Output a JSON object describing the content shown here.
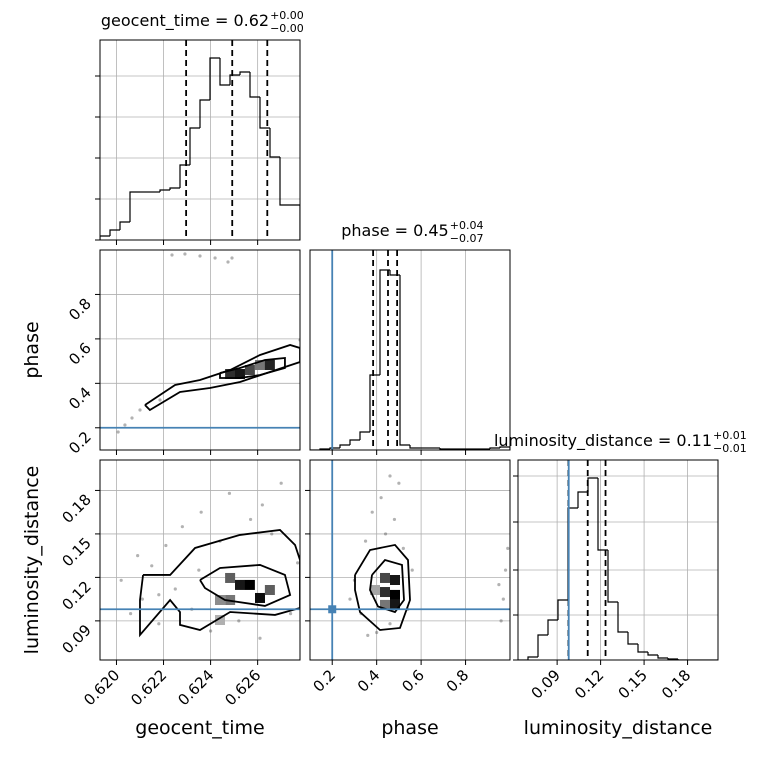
{
  "chart_data": [
    {
      "type": "histogram",
      "title": "geocent_time = 0.62",
      "title_upper": "+0.00",
      "title_lower": "−0.00",
      "bins": [
        0.6193,
        0.619725,
        0.62015,
        0.620575,
        0.621,
        0.621425,
        0.62185,
        0.622275,
        0.6227,
        0.623125,
        0.62355,
        0.623975,
        0.6244,
        0.624825,
        0.62525,
        0.625675,
        0.6261,
        0.626525,
        0.62695,
        0.627375,
        0.6278
      ],
      "counts": [
        4,
        10,
        18,
        48,
        48,
        48,
        50,
        52,
        75,
        112,
        140,
        182,
        155,
        165,
        168,
        143,
        112,
        83,
        35,
        35
      ],
      "quantiles": [
        0.62296,
        0.62492,
        0.62641
      ],
      "color": "#000000",
      "xlim": [
        0.6193,
        0.6278
      ],
      "ylim": [
        0,
        200
      ],
      "xticks": [
        0.62,
        0.622,
        0.624,
        0.626
      ],
      "yticks": [
        0,
        41,
        82,
        123,
        164
      ],
      "grid": true
    },
    {
      "type": "corner2d",
      "ylabel": "phase",
      "xlim": [
        0.6193,
        0.6278
      ],
      "ylim": [
        0.1,
        1.0
      ],
      "xticks": [
        0.62,
        0.622,
        0.624,
        0.626
      ],
      "yticks": [
        0.2,
        0.4,
        0.6,
        0.8
      ],
      "grid": true,
      "points": {
        "x": [
          0.62007,
          0.62036,
          0.62066,
          0.621,
          0.62236,
          0.62291,
          0.62355,
          0.62419,
          0.62474,
          0.62491,
          0.6278,
          0.62185
        ],
        "y": [
          0.181,
          0.2125,
          0.244,
          0.28,
          0.9775,
          0.982,
          0.973,
          0.964,
          0.946,
          0.964,
          0.595,
          0.325
        ]
      },
      "contours": [
        {
          "x": [
            0.62121,
            0.62249,
            0.62355,
            0.62483,
            0.6261,
            0.62738,
            0.6278,
            0.6278,
            0.62652,
            0.62525,
            0.62397,
            0.6227,
            0.62142,
            0.62121
          ],
          "y": [
            0.3025,
            0.3925,
            0.415,
            0.46,
            0.5275,
            0.5725,
            0.559,
            0.496,
            0.451,
            0.406,
            0.379,
            0.361,
            0.28,
            0.3025
          ]
        },
        {
          "x": [
            0.6244,
            0.62525,
            0.62631,
            0.62716,
            0.62716,
            0.6261,
            0.62525,
            0.6244,
            0.6244
          ],
          "y": [
            0.4465,
            0.469,
            0.505,
            0.514,
            0.469,
            0.4375,
            0.424,
            0.424,
            0.4465
          ]
        }
      ],
      "cells": {
        "x": [
          0.62483,
          0.62525,
          0.62567,
          0.6261,
          0.62652
        ],
        "y": [
          0.442,
          0.442,
          0.46,
          0.4825,
          0.4825
        ],
        "values": [
          0.8,
          0.9,
          0.7,
          0.5,
          0.85
        ]
      },
      "truth_y": 0.2,
      "truth_color": "#4682b4"
    },
    {
      "type": "histogram",
      "title": "phase = 0.45",
      "title_upper": "+0.04",
      "title_lower": "−0.07",
      "bins": [
        0.1,
        0.145,
        0.19,
        0.235,
        0.28,
        0.325,
        0.37,
        0.415,
        0.46,
        0.505,
        0.55,
        0.595,
        0.64,
        0.685,
        0.73,
        0.775,
        0.82,
        0.865,
        0.91,
        0.955,
        1.0
      ],
      "counts": [
        0,
        1,
        2,
        5,
        10,
        18,
        75,
        180,
        175,
        5,
        2,
        2,
        2,
        1,
        1,
        1,
        1,
        1,
        2,
        3
      ],
      "quantiles": [
        0.384,
        0.451,
        0.492
      ],
      "truth": 0.2,
      "truth_color": "#4682b4",
      "color": "#000000",
      "xlim": [
        0.1,
        1.0
      ],
      "ylim": [
        0,
        200
      ],
      "xticks": [
        0.2,
        0.4,
        0.6,
        0.8
      ],
      "grid": true
    },
    {
      "type": "corner2d",
      "xlabel": "geocent_time",
      "ylabel": "luminosity_distance",
      "xlim": [
        0.6193,
        0.6278
      ],
      "ylim": [
        0.063,
        0.201
      ],
      "xticks": [
        {
          "value": 0.62,
          "label": "0.620"
        },
        0.622,
        0.624,
        0.626
      ],
      "yticks": [
        0.09,
        0.12,
        0.15,
        0.18
      ],
      "grid": true,
      "points": {
        "x": [
          0.6202,
          0.6206,
          0.6209,
          0.6211,
          0.6215,
          0.6218,
          0.6221,
          0.6225,
          0.6228,
          0.6232,
          0.6236,
          0.624,
          0.6244,
          0.6248,
          0.6252,
          0.6257,
          0.6261,
          0.6266,
          0.627,
          0.6274,
          0.6277,
          0.6235,
          0.6218,
          0.6262
        ],
        "y": [
          0.118,
          0.095,
          0.135,
          0.105,
          0.128,
          0.088,
          0.142,
          0.112,
          0.155,
          0.098,
          0.165,
          0.083,
          0.145,
          0.178,
          0.09,
          0.16,
          0.078,
          0.15,
          0.185,
          0.095,
          0.13,
          0.125,
          0.108,
          0.17
        ]
      },
      "contours": [
        {
          "x": [
            0.62113,
            0.62228,
            0.62334,
            0.62525,
            0.62695,
            0.62759,
            0.6278,
            0.6278,
            0.62674,
            0.62483,
            0.62355,
            0.6227,
            0.6227,
            0.62228,
            0.621,
            0.621,
            0.62113
          ],
          "y": [
            0.1217,
            0.1217,
            0.1403,
            0.1493,
            0.1527,
            0.1424,
            0.132,
            0.0989,
            0.0941,
            0.0961,
            0.0837,
            0.0872,
            0.0961,
            0.1044,
            0.0803,
            0.1044,
            0.1217
          ]
        },
        {
          "x": [
            0.62355,
            0.6244,
            0.6261,
            0.62716,
            0.62738,
            0.62631,
            0.62461,
            0.62376,
            0.62355
          ],
          "y": [
            0.1182,
            0.1265,
            0.1286,
            0.1217,
            0.1079,
            0.1003,
            0.1044,
            0.1127,
            0.1182
          ]
        }
      ],
      "cells": {
        "x": [
          0.62483,
          0.62525,
          0.62567,
          0.6261,
          0.62652,
          0.6244,
          0.62483,
          0.6244
        ],
        "y": [
          0.1196,
          0.1148,
          0.1148,
          0.1058,
          0.1113,
          0.1044,
          0.1044,
          0.0906
        ],
        "values": [
          0.6,
          0.9,
          1.0,
          0.95,
          0.6,
          0.4,
          0.5,
          0.25
        ]
      },
      "truth_y": 0.098,
      "truth_color": "#4682b4"
    },
    {
      "type": "corner2d",
      "xlabel": "phase",
      "xlim": [
        0.1,
        1.0
      ],
      "ylim": [
        0.063,
        0.201
      ],
      "xticks": [
        0.2,
        0.4,
        0.6,
        0.8
      ],
      "yticks": [
        0.09,
        0.12,
        0.15,
        0.18
      ],
      "grid": true,
      "points": {
        "x": [
          0.3,
          0.33,
          0.35,
          0.38,
          0.4,
          0.42,
          0.44,
          0.46,
          0.48,
          0.5,
          0.52,
          0.54,
          0.56,
          0.28,
          0.36,
          0.46,
          0.97,
          0.98,
          0.96,
          0.99,
          0.95
        ],
        "y": [
          0.118,
          0.095,
          0.145,
          0.165,
          0.082,
          0.175,
          0.15,
          0.088,
          0.16,
          0.185,
          0.14,
          0.098,
          0.125,
          0.105,
          0.08,
          0.19,
          0.105,
          0.125,
          0.09,
          0.14,
          0.115
        ]
      },
      "contours": [
        {
          "x": [
            0.3025,
            0.37,
            0.4825,
            0.541,
            0.55,
            0.505,
            0.415,
            0.325,
            0.3025,
            0.3025
          ],
          "y": [
            0.1217,
            0.1389,
            0.1424,
            0.132,
            0.1044,
            0.0851,
            0.0837,
            0.0961,
            0.1113,
            0.1217
          ]
        },
        {
          "x": [
            0.379,
            0.4375,
            0.514,
            0.523,
            0.4825,
            0.406,
            0.37,
            0.379
          ],
          "y": [
            0.1217,
            0.132,
            0.1286,
            0.1044,
            0.0961,
            0.0999,
            0.1113,
            0.1217
          ]
        }
      ],
      "cells": {
        "x": [
          0.4375,
          0.4825,
          0.4375,
          0.4825,
          0.4825,
          0.4375,
          0.3925
        ],
        "y": [
          0.1196,
          0.1182,
          0.1099,
          0.1079,
          0.101,
          0.101,
          0.1113
        ],
        "values": [
          0.7,
          0.9,
          0.8,
          1.0,
          0.9,
          0.5,
          0.3
        ]
      },
      "truth_x": 0.2,
      "truth_y": 0.098,
      "truth_color": "#4682b4"
    },
    {
      "type": "histogram",
      "title": "luminosity_distance = 0.11",
      "title_upper": "+0.01",
      "title_lower": "−0.01",
      "xlabel": "luminosity_distance",
      "bins": [
        0.063,
        0.0699,
        0.0768,
        0.0837,
        0.0906,
        0.0975,
        0.1044,
        0.1113,
        0.1182,
        0.1251,
        0.132,
        0.1389,
        0.1458,
        0.1527,
        0.1596,
        0.1665,
        0.1734,
        0.1803,
        0.1872,
        0.1941,
        0.201
      ],
      "counts": [
        0,
        3,
        25,
        40,
        60,
        152,
        168,
        182,
        110,
        58,
        28,
        16,
        8,
        5,
        2,
        1,
        0,
        0,
        0,
        0
      ],
      "quantiles": [
        0.0978,
        0.1111,
        0.1234
      ],
      "truth": 0.098,
      "truth_color": "#4682b4",
      "color": "#000000",
      "xlim": [
        0.063,
        0.201
      ],
      "ylim": [
        0,
        200
      ],
      "xticks": [
        0.09,
        0.12,
        0.15,
        0.18
      ],
      "yticks": [
        0,
        45,
        90,
        138,
        184
      ],
      "grid": true
    }
  ]
}
